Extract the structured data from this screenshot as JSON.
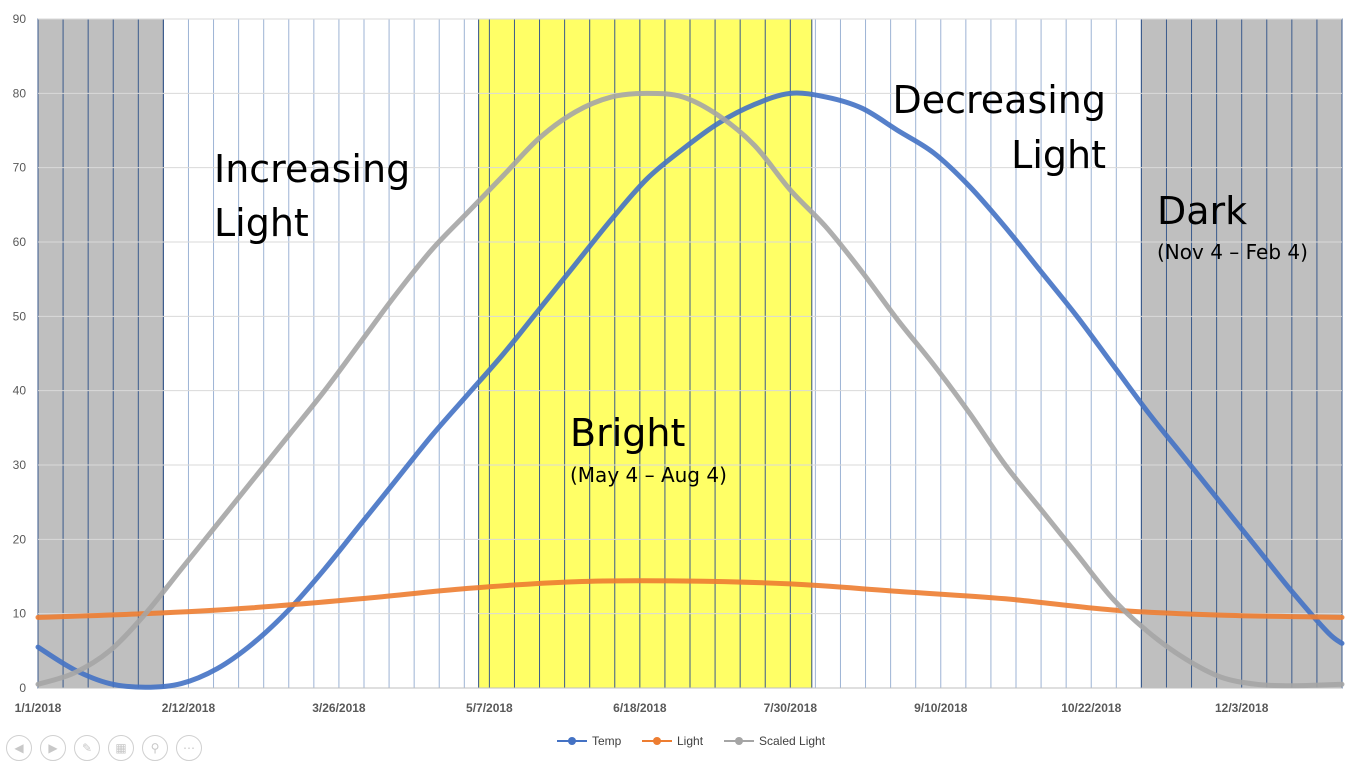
{
  "chart_data": {
    "type": "line",
    "title": "",
    "xlabel": "",
    "ylabel": "",
    "ylim": [
      0,
      90
    ],
    "yticks": [
      0,
      10,
      20,
      30,
      40,
      50,
      60,
      70,
      80,
      90
    ],
    "x_start": "2018-01-01",
    "x_end": "2018-12-31",
    "xtick_labels": [
      {
        "label": "1/1/2018",
        "day": 0
      },
      {
        "label": "2/12/2018",
        "day": 42
      },
      {
        "label": "3/26/2018",
        "day": 84
      },
      {
        "label": "5/7/2018",
        "day": 126
      },
      {
        "label": "6/18/2018",
        "day": 168
      },
      {
        "label": "7/30/2018",
        "day": 210
      },
      {
        "label": "9/10/2018",
        "day": 252
      },
      {
        "label": "10/22/2018",
        "day": 294
      },
      {
        "label": "12/3/2018",
        "day": 336
      }
    ],
    "series": [
      {
        "name": "Temp",
        "color": "#4472C4",
        "points": [
          [
            0,
            5.5
          ],
          [
            10,
            2.5
          ],
          [
            20,
            0.6
          ],
          [
            30,
            0.1
          ],
          [
            40,
            0.6
          ],
          [
            50,
            2.6
          ],
          [
            60,
            6
          ],
          [
            70,
            10.5
          ],
          [
            80,
            16
          ],
          [
            90,
            22
          ],
          [
            100,
            28
          ],
          [
            110,
            34
          ],
          [
            120,
            39.5
          ],
          [
            130,
            45
          ],
          [
            140,
            51
          ],
          [
            150,
            57
          ],
          [
            160,
            63
          ],
          [
            170,
            68.5
          ],
          [
            180,
            72.5
          ],
          [
            190,
            76
          ],
          [
            200,
            78.5
          ],
          [
            210,
            80
          ],
          [
            220,
            79.5
          ],
          [
            230,
            78
          ],
          [
            240,
            75
          ],
          [
            250,
            72
          ],
          [
            260,
            67.5
          ],
          [
            270,
            62
          ],
          [
            280,
            56
          ],
          [
            290,
            50
          ],
          [
            300,
            43.5
          ],
          [
            310,
            37
          ],
          [
            320,
            31
          ],
          [
            330,
            25
          ],
          [
            340,
            19
          ],
          [
            350,
            13
          ],
          [
            360,
            7.5
          ],
          [
            364,
            6
          ]
        ]
      },
      {
        "name": "Light",
        "color": "#ED7D31",
        "points": [
          [
            0,
            9.5
          ],
          [
            30,
            10
          ],
          [
            60,
            10.8
          ],
          [
            90,
            12
          ],
          [
            120,
            13.4
          ],
          [
            150,
            14.3
          ],
          [
            180,
            14.4
          ],
          [
            210,
            14
          ],
          [
            240,
            13
          ],
          [
            270,
            12
          ],
          [
            300,
            10.5
          ],
          [
            330,
            9.8
          ],
          [
            364,
            9.5
          ]
        ]
      },
      {
        "name": "Scaled Light",
        "color": "#A5A5A5",
        "points": [
          [
            0,
            0.5
          ],
          [
            10,
            2
          ],
          [
            20,
            5
          ],
          [
            30,
            10
          ],
          [
            40,
            16
          ],
          [
            50,
            22
          ],
          [
            60,
            28
          ],
          [
            70,
            34
          ],
          [
            80,
            40
          ],
          [
            90,
            46.5
          ],
          [
            100,
            53
          ],
          [
            110,
            59
          ],
          [
            120,
            64
          ],
          [
            130,
            69
          ],
          [
            140,
            74
          ],
          [
            150,
            77.5
          ],
          [
            160,
            79.5
          ],
          [
            170,
            80
          ],
          [
            180,
            79.5
          ],
          [
            190,
            77
          ],
          [
            200,
            73
          ],
          [
            210,
            67
          ],
          [
            220,
            62
          ],
          [
            230,
            56
          ],
          [
            240,
            49.5
          ],
          [
            250,
            43.5
          ],
          [
            260,
            37
          ],
          [
            270,
            30
          ],
          [
            280,
            24
          ],
          [
            290,
            18
          ],
          [
            300,
            12
          ],
          [
            310,
            7.5
          ],
          [
            320,
            4
          ],
          [
            330,
            1.5
          ],
          [
            340,
            0.5
          ],
          [
            350,
            0.3
          ],
          [
            364,
            0.5
          ]
        ]
      }
    ],
    "regions": [
      {
        "name": "Dark",
        "from_day": 0,
        "to_day": 35,
        "color": "#BFBFBF"
      },
      {
        "name": "Bright",
        "from_day": 123,
        "to_day": 216,
        "color": "#FFFF66"
      },
      {
        "name": "Dark",
        "from_day": 308,
        "to_day": 364,
        "color": "#BFBFBF"
      }
    ],
    "annotations": [
      {
        "title": "Increasing",
        "subtitle": ""
      },
      {
        "title": "Light",
        "subtitle": ""
      },
      {
        "title": "Decreasing",
        "subtitle": ""
      },
      {
        "title": "Light",
        "subtitle": ""
      },
      {
        "title": "Dark",
        "subtitle": "(Nov 4 – Feb 4)"
      },
      {
        "title": "Bright",
        "subtitle": "(May 4 – Aug 4)"
      }
    ],
    "legend": {
      "position": "bottom",
      "entries": [
        "Temp",
        "Light",
        "Scaled Light"
      ]
    }
  },
  "toolbar": {
    "icons": [
      "previous-icon",
      "next-icon",
      "pen-icon",
      "slides-icon",
      "zoom-icon",
      "more-icon"
    ]
  }
}
